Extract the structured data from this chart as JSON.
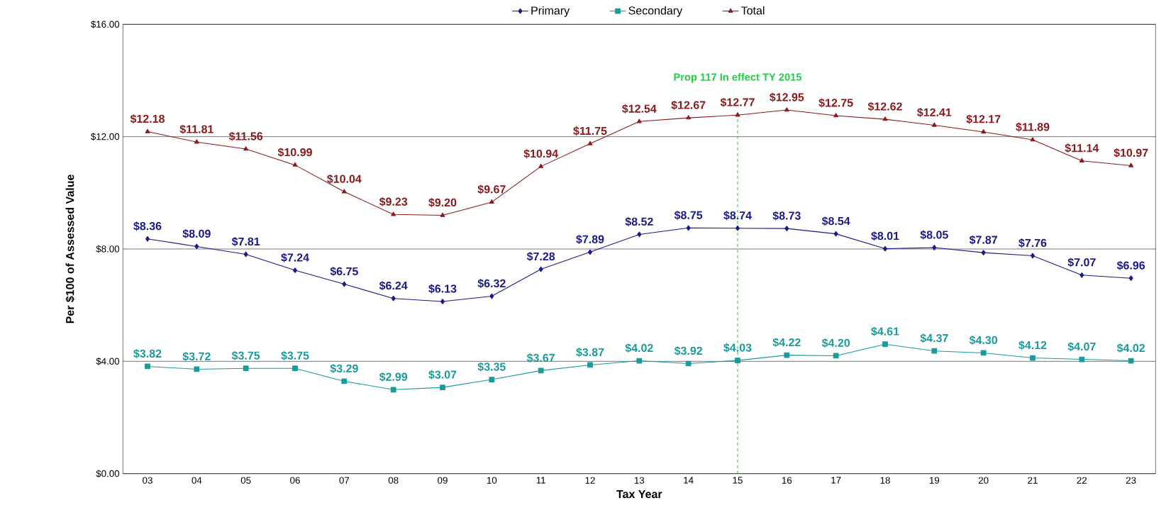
{
  "chart_data": {
    "type": "line",
    "xlabel": "Tax Year",
    "ylabel": "Per $100 of Assessed Value",
    "categories": [
      "03",
      "04",
      "05",
      "06",
      "07",
      "08",
      "09",
      "10",
      "11",
      "12",
      "13",
      "14",
      "15",
      "16",
      "17",
      "18",
      "19",
      "20",
      "21",
      "22",
      "23"
    ],
    "series": [
      {
        "name": "Primary",
        "color": "#1a1a8c",
        "marker": "diamond",
        "values": [
          8.36,
          8.09,
          7.81,
          7.24,
          6.75,
          6.24,
          6.13,
          6.32,
          7.28,
          7.89,
          8.52,
          8.75,
          8.74,
          8.73,
          8.54,
          8.01,
          8.05,
          7.87,
          7.76,
          7.07,
          6.96
        ],
        "value_labels": [
          "$8.36",
          "$8.09",
          "$7.81",
          "$7.24",
          "$6.75",
          "$6.24",
          "$6.13",
          "$6.32",
          "$7.28",
          "$7.89",
          "$8.52",
          "$8.75",
          "$8.74",
          "$8.73",
          "$8.54",
          "$8.01",
          "$8.05",
          "$7.87",
          "$7.76",
          "$7.07",
          "$6.96"
        ]
      },
      {
        "name": "Secondary",
        "color": "#1a9a9a",
        "marker": "square",
        "values": [
          3.82,
          3.72,
          3.75,
          3.75,
          3.29,
          2.99,
          3.07,
          3.35,
          3.67,
          3.87,
          4.02,
          3.92,
          4.03,
          4.22,
          4.2,
          4.61,
          4.37,
          4.3,
          4.12,
          4.07,
          4.02
        ],
        "value_labels": [
          "$3.82",
          "$3.72",
          "$3.75",
          "$3.75",
          "$3.29",
          "$2.99",
          "$3.07",
          "$3.35",
          "$3.67",
          "$3.87",
          "$4.02",
          "$3.92",
          "$4.03",
          "$4.22",
          "$4.20",
          "$4.61",
          "$4.37",
          "$4.30",
          "$4.12",
          "$4.07",
          "$4.02"
        ]
      },
      {
        "name": "Total",
        "color": "#8b1a1a",
        "marker": "triangle",
        "values": [
          12.18,
          11.81,
          11.56,
          10.99,
          10.04,
          9.23,
          9.2,
          9.67,
          10.94,
          11.75,
          12.54,
          12.67,
          12.77,
          12.95,
          12.75,
          12.62,
          12.41,
          12.17,
          11.89,
          11.14,
          10.97
        ],
        "value_labels": [
          "$12.18",
          "$11.81",
          "$11.56",
          "$10.99",
          "$10.04",
          "$9.23",
          "$9.20",
          "$9.67",
          "$10.94",
          "$11.75",
          "$12.54",
          "$12.67",
          "$12.77",
          "$12.95",
          "$12.75",
          "$12.62",
          "$12.41",
          "$12.17",
          "$11.89",
          "$11.14",
          "$10.97"
        ]
      }
    ],
    "ylim": [
      0,
      16
    ],
    "yticks": [
      {
        "value": 0,
        "label": "$0.00"
      },
      {
        "value": 4,
        "label": "$4.00"
      },
      {
        "value": 8,
        "label": "$8.00"
      },
      {
        "value": 12,
        "label": "$12.00"
      },
      {
        "value": 16,
        "label": "$16.00"
      }
    ],
    "grid": "y",
    "legend": "top",
    "line_style": "solid",
    "ref_lines": [
      {
        "axis": "x",
        "value": "15",
        "label": "Prop 117 In effect TY 2015",
        "color": "#22cc44",
        "line_style": "dashed"
      }
    ]
  }
}
